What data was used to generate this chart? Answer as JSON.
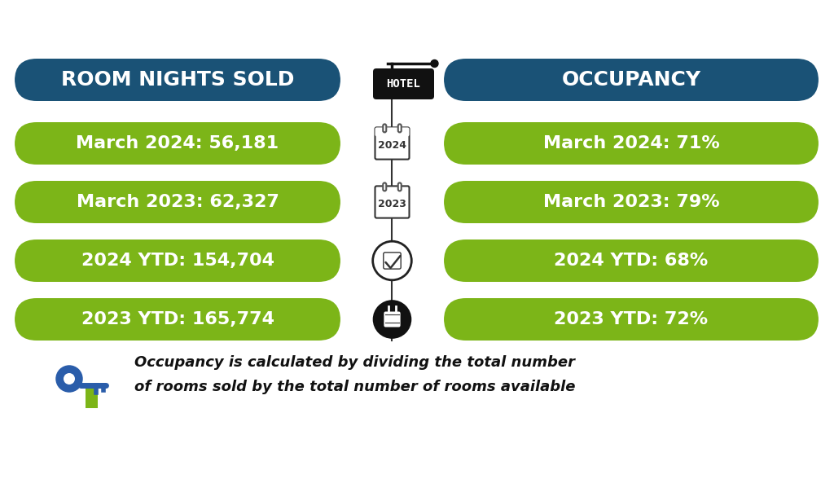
{
  "background_color": "#ffffff",
  "header_bg_color": "#1a5276",
  "pill_bg_color": "#7cb518",
  "header_text_color": "#ffffff",
  "pill_text_color": "#ffffff",
  "left_header": "ROOM NIGHTS SOLD",
  "right_header": "OCCUPANCY",
  "hotel_label": "HOTEL",
  "left_pills": [
    "March 2024: 56,181",
    "March 2023: 62,327",
    "2024 YTD: 154,704",
    "2023 YTD: 165,774"
  ],
  "right_pills": [
    "March 2024: 71%",
    "March 2023: 79%",
    "2024 YTD: 68%",
    "2023 YTD: 72%"
  ],
  "footer_text_line1": "Occupancy is calculated by dividing the total number",
  "footer_text_line2": "of rooms sold by the total number of rooms available",
  "header_font_size": 18,
  "pill_font_size": 16,
  "footer_font_size": 13
}
